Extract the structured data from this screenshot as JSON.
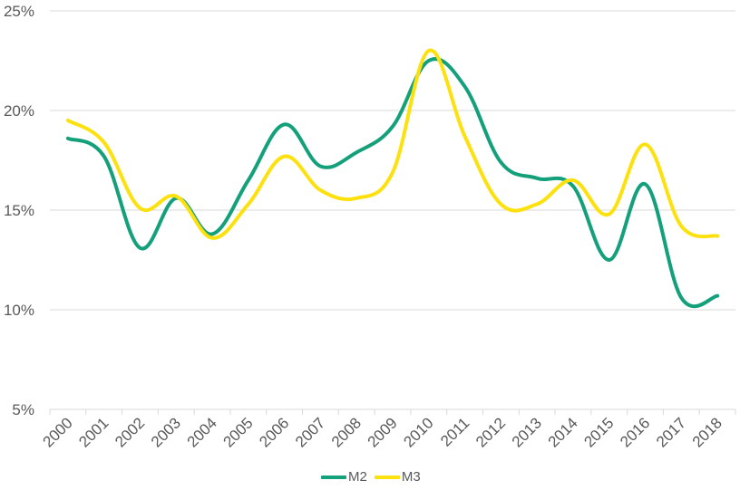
{
  "chart_data": {
    "type": "line",
    "title": "",
    "xlabel": "",
    "ylabel": "",
    "categories": [
      "2000",
      "2001",
      "2002",
      "2003",
      "2004",
      "2005",
      "2006",
      "2007",
      "2008",
      "2009",
      "2010",
      "2011",
      "2012",
      "2013",
      "2014",
      "2015",
      "2016",
      "2017",
      "2018"
    ],
    "series": [
      {
        "name": "M2",
        "color": "#13a07a",
        "values": [
          18.6,
          17.7,
          13.1,
          15.6,
          13.8,
          16.5,
          19.3,
          17.2,
          17.9,
          19.2,
          22.5,
          21.2,
          17.4,
          16.6,
          16.2,
          12.5,
          16.3,
          10.6,
          10.7
        ]
      },
      {
        "name": "M3",
        "color": "#fde10f",
        "values": [
          19.5,
          18.4,
          15.1,
          15.7,
          13.6,
          15.3,
          17.7,
          16.0,
          15.6,
          16.9,
          23.0,
          18.7,
          15.3,
          15.3,
          16.5,
          14.8,
          18.3,
          14.2,
          13.7
        ]
      }
    ],
    "yticks": [
      "5%",
      "10%",
      "15%",
      "20%",
      "25%"
    ],
    "ylim": [
      5,
      25
    ],
    "grid": true,
    "smooth": true,
    "legend_position": "bottom"
  },
  "legend": {
    "items": [
      {
        "label": "M2",
        "color": "#13a07a"
      },
      {
        "label": "M3",
        "color": "#fde10f"
      }
    ]
  }
}
